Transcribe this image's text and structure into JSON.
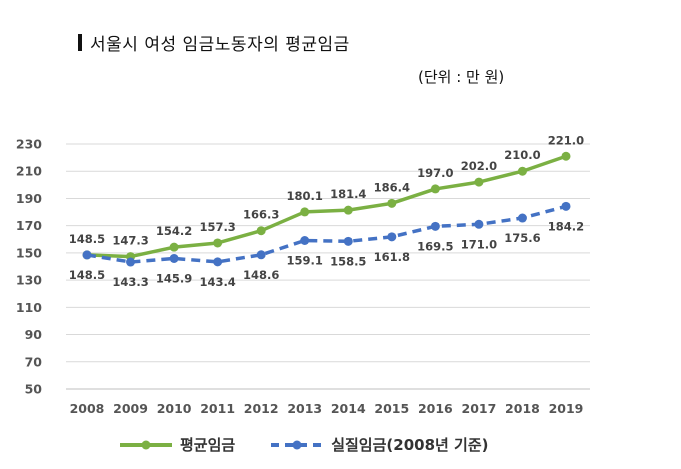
{
  "header": {
    "title": "서울시 여성 임금노동자의 평균임금",
    "unit": "(단위 : 만 원)"
  },
  "colors": {
    "series_avg": "#7bb043",
    "series_real": "#4472c4",
    "grid": "#d9d9d9",
    "axis": "#bfbfbf"
  },
  "chart_data": {
    "type": "line",
    "title": "서울시 여성 임금노동자의 평균임금",
    "unit": "(단위 : 만 원)",
    "x": [
      "2008",
      "2009",
      "2010",
      "2011",
      "2012",
      "2013",
      "2014",
      "2015",
      "2016",
      "2017",
      "2018",
      "2019"
    ],
    "yticks": [
      230,
      210,
      190,
      170,
      150,
      130,
      110,
      90,
      70,
      50
    ],
    "ylim": [
      50,
      230
    ],
    "grid": true,
    "legend_position": "bottom",
    "series": [
      {
        "name": "평균임금",
        "style": "solid",
        "values": [
          148.5,
          147.3,
          154.2,
          157.3,
          166.3,
          180.1,
          181.4,
          186.4,
          197.0,
          202.0,
          210.0,
          221.0
        ],
        "labels": [
          "148.5",
          "147.3",
          "154.2",
          "157.3",
          "166.3",
          "180.1",
          "181.4",
          "186.4",
          "197.0",
          "202.0",
          "210.0",
          "221.0"
        ]
      },
      {
        "name": "실질임금(2008년 기준)",
        "style": "dashed",
        "values": [
          148.5,
          143.3,
          145.9,
          143.4,
          148.6,
          159.1,
          158.5,
          161.8,
          169.5,
          171.0,
          175.6,
          184.2
        ],
        "labels": [
          "148.5",
          "143.3",
          "145.9",
          "143.4",
          "148.6",
          "159.1",
          "158.5",
          "161.8",
          "169.5",
          "171.0",
          "175.6",
          "184.2"
        ]
      }
    ]
  }
}
